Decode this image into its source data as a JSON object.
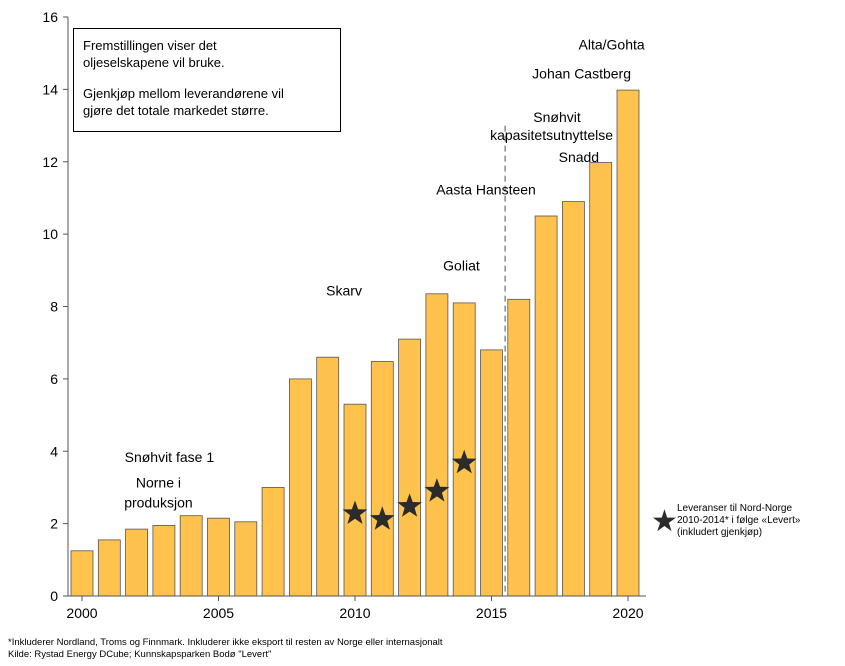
{
  "chart_data": {
    "type": "bar",
    "title": "",
    "xlabel": "",
    "ylabel": "",
    "x": [
      2000,
      2001,
      2002,
      2003,
      2004,
      2005,
      2006,
      2007,
      2008,
      2009,
      2010,
      2011,
      2012,
      2013,
      2014,
      2015,
      2016,
      2017,
      2018,
      2019,
      2020
    ],
    "values": [
      1.25,
      1.55,
      1.85,
      1.95,
      2.22,
      2.15,
      2.05,
      3.0,
      6.0,
      6.6,
      5.3,
      6.48,
      7.1,
      8.35,
      8.1,
      6.8,
      8.2,
      10.5,
      10.9,
      11.98,
      13.98
    ],
    "ylim": [
      0,
      16
    ],
    "yticks": [
      "0",
      "2",
      "4",
      "6",
      "8",
      "10",
      "12",
      "14",
      "16"
    ],
    "xticks": [
      "2000",
      "2005",
      "2010",
      "2015",
      "2020"
    ],
    "bar_color": "#ffc24d",
    "grid": false,
    "stars": {
      "x": [
        2010,
        2011,
        2012,
        2013,
        2014
      ],
      "values": [
        2.28,
        2.12,
        2.48,
        2.9,
        3.68
      ],
      "color": "#2b2b2b"
    },
    "vline_x": 2015.5,
    "annotations": [
      {
        "text": "Snøhvit fase 1",
        "x": 2003.2,
        "y": 3.7
      },
      {
        "text": "Norne i",
        "x": 2002.8,
        "y": 3.0
      },
      {
        "text": "produksjon",
        "x": 2002.8,
        "y": 2.45
      },
      {
        "text": "Skarv",
        "x": 2009.6,
        "y": 8.3
      },
      {
        "text": "Goliat",
        "x": 2013.9,
        "y": 9.0
      },
      {
        "text": "Aasta Hansteen",
        "x": 2014.8,
        "y": 11.1
      },
      {
        "text": "Snadd",
        "x": 2018.2,
        "y": 12.0
      },
      {
        "text": "Snøhvit",
        "x": 2017.4,
        "y": 13.1
      },
      {
        "text": "kapasitetsutnyttelse",
        "x": 2017.2,
        "y": 12.6
      },
      {
        "text": "Johan Castberg",
        "x": 2018.3,
        "y": 14.3
      },
      {
        "text": "Alta/Gohta",
        "x": 2019.4,
        "y": 15.1
      }
    ]
  },
  "info_box": {
    "line1": "Fremstillingen viser det",
    "line2": "oljeselskapene vil bruke.",
    "line3": "Gjenkjøp mellom leverandørene vil",
    "line4": "gjøre det totale markedet større."
  },
  "legend": {
    "text": "Leveranser  til Nord-Norge\n2010-2014*  i følge «Levert»\n(inkludert gjenkjøp)",
    "star_icon": "star-icon"
  },
  "footnote": {
    "line1": "*Inkluderer Nordland, Troms og Finnmark. Inkluderer  ikke eksport til resten  av Norge eller internasjonalt",
    "line2": "Kilde: Rystad  Energy DCube;  Kunnskapsparken  Bodø \"Levert\""
  }
}
